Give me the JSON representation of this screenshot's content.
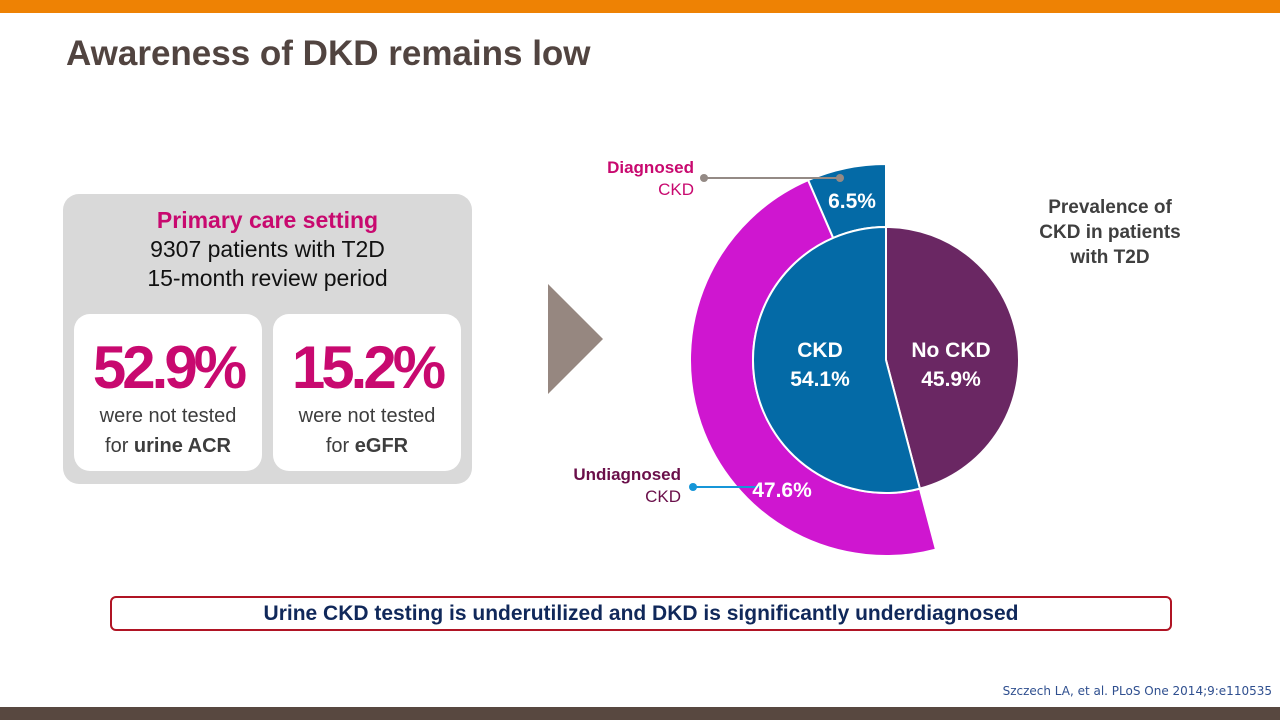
{
  "title": "Awareness of DKD remains low",
  "panel": {
    "heading": "Primary care setting",
    "line1": "9307 patients with T2D",
    "line2": "15-month review period",
    "cards": [
      {
        "value": "52.9%",
        "text1": "were not tested",
        "text2_prefix": "for ",
        "text2_bold": "urine ACR"
      },
      {
        "value": "15.2%",
        "text1": "were not tested",
        "text2_prefix": "for ",
        "text2_bold": "eGFR"
      }
    ]
  },
  "colors": {
    "accent_orange": "#ee8204",
    "footer_brown": "#584840",
    "magenta_text": "#c8096f",
    "ckd_blue": "#046aa6",
    "no_ckd_purple": "#6a2763",
    "undiagnosed_magenta": "#cf16d0",
    "callout_border": "#b01424"
  },
  "chart_data": {
    "type": "pie",
    "title": "Prevalence of CKD in patients with T2D",
    "title_lines": [
      "Prevalence of",
      "CKD in patients",
      "with T2D"
    ],
    "inner": [
      {
        "label": "CKD",
        "value": 54.1,
        "display": "54.1%"
      },
      {
        "label": "No CKD",
        "value": 45.9,
        "display": "45.9%"
      }
    ],
    "outer": [
      {
        "label_line1": "Diagnosed",
        "label_line2": "CKD",
        "value": 6.5,
        "display": "6.5%"
      },
      {
        "label_line1": "Undiagnosed",
        "label_line2": "CKD",
        "value": 47.6,
        "display": "47.6%"
      }
    ]
  },
  "callout": "Urine CKD testing is underutilized and DKD is significantly underdiagnosed",
  "citation": "Szczech LA, et al. PLoS One 2014;9:e110535"
}
